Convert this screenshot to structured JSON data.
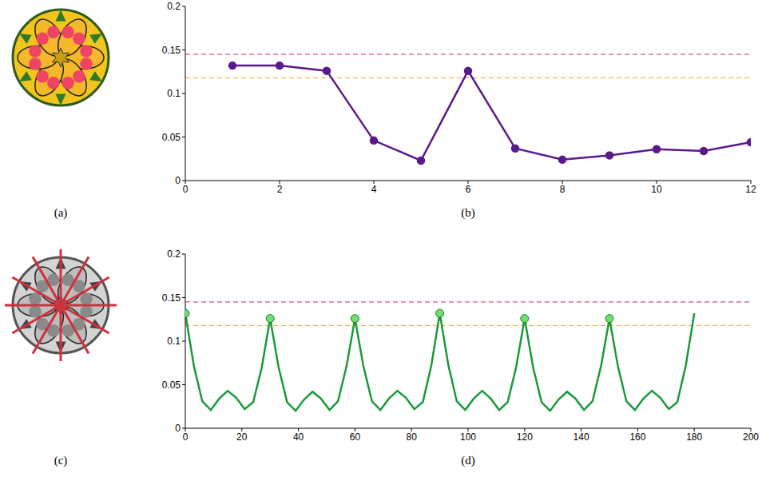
{
  "images": [
    {
      "caption": "(a)"
    },
    {
      "caption": "(c)"
    }
  ],
  "chart_data": [
    {
      "type": "line",
      "caption": "(b)",
      "x": [
        1,
        2,
        3,
        4,
        5,
        6,
        7,
        8,
        9,
        10,
        11,
        12
      ],
      "series": [
        {
          "color": "#5b1a8b",
          "marker": "circle",
          "values": [
            0.132,
            0.132,
            0.126,
            0.046,
            0.023,
            0.126,
            0.037,
            0.024,
            0.029,
            0.036,
            0.034,
            0.044
          ]
        }
      ],
      "reference_lines": [
        {
          "value": 0.145,
          "color": "#c8284a",
          "line_style": "dashed"
        },
        {
          "value": 0.118,
          "color": "#f5a13a",
          "line_style": "dashed"
        }
      ],
      "xlim": [
        0,
        12
      ],
      "xticks": [
        0,
        2,
        4,
        6,
        8,
        10,
        12
      ],
      "ylim": [
        0,
        0.2
      ],
      "yticks": [
        0,
        0.05,
        0.1,
        0.15,
        0.2
      ]
    },
    {
      "type": "line",
      "caption": "(d)",
      "x": [
        0,
        3,
        6,
        9,
        12,
        15,
        18,
        21,
        24,
        27,
        30,
        33,
        36,
        39,
        42,
        45,
        48,
        51,
        54,
        57,
        60,
        63,
        66,
        69,
        72,
        75,
        78,
        81,
        84,
        87,
        90,
        93,
        96,
        99,
        102,
        105,
        108,
        111,
        114,
        117,
        120,
        123,
        126,
        129,
        132,
        135,
        138,
        141,
        144,
        147,
        150,
        153,
        156,
        159,
        162,
        165,
        168,
        171,
        174,
        177,
        180
      ],
      "series": [
        {
          "color": "#1a9a3a",
          "values": [
            0.132,
            0.072,
            0.031,
            0.021,
            0.034,
            0.043,
            0.035,
            0.022,
            0.03,
            0.069,
            0.126,
            0.07,
            0.03,
            0.02,
            0.033,
            0.042,
            0.034,
            0.021,
            0.031,
            0.071,
            0.126,
            0.071,
            0.031,
            0.021,
            0.034,
            0.043,
            0.035,
            0.022,
            0.03,
            0.072,
            0.132,
            0.073,
            0.031,
            0.021,
            0.034,
            0.043,
            0.034,
            0.021,
            0.03,
            0.07,
            0.126,
            0.07,
            0.03,
            0.02,
            0.033,
            0.042,
            0.034,
            0.021,
            0.031,
            0.071,
            0.126,
            0.071,
            0.031,
            0.021,
            0.034,
            0.043,
            0.035,
            0.022,
            0.03,
            0.072,
            0.132
          ]
        },
        {
          "type": "scatter",
          "color": "#6ee06e",
          "marker": "circle",
          "x": [
            0,
            30,
            60,
            90,
            120,
            150
          ],
          "values": [
            0.132,
            0.126,
            0.126,
            0.132,
            0.126,
            0.126
          ]
        }
      ],
      "reference_lines": [
        {
          "value": 0.145,
          "color": "#c8284a",
          "line_style": "dashed"
        },
        {
          "value": 0.118,
          "color": "#f5a13a",
          "line_style": "dashed"
        }
      ],
      "xlim": [
        0,
        200
      ],
      "xticks": [
        0,
        20,
        40,
        60,
        80,
        100,
        120,
        140,
        160,
        180,
        200
      ],
      "ylim": [
        0,
        0.2
      ],
      "yticks": [
        0,
        0.05,
        0.1,
        0.15,
        0.2
      ]
    }
  ]
}
